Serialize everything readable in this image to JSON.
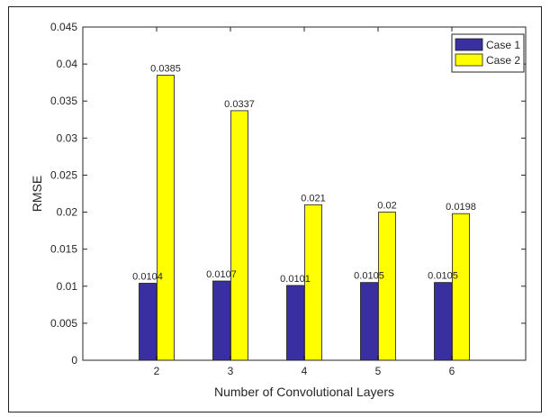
{
  "chart_data": {
    "type": "bar",
    "title": "",
    "xlabel": "Number of Convolutional Layers",
    "ylabel": "RMSE",
    "categories": [
      "2",
      "3",
      "4",
      "5",
      "6"
    ],
    "series": [
      {
        "name": "Case 1",
        "color": "#3a2fa0",
        "values": [
          0.0104,
          0.0107,
          0.0101,
          0.0105,
          0.0105
        ],
        "labels": [
          "0.0104",
          "0.0107",
          "0.0101",
          "0.0105",
          "0.0105"
        ]
      },
      {
        "name": "Case 2",
        "color": "#ffff00",
        "values": [
          0.0385,
          0.0337,
          0.021,
          0.02,
          0.0198
        ],
        "labels": [
          "0.0385",
          "0.0337",
          "0.021",
          "0.02",
          "0.0198"
        ]
      }
    ],
    "ylim": [
      0,
      0.045
    ],
    "yticks": [
      0,
      0.005,
      0.01,
      0.015,
      0.02,
      0.025,
      0.03,
      0.035,
      0.04,
      0.045
    ],
    "ytick_labels": [
      "0",
      "0.005",
      "0.01",
      "0.015",
      "0.02",
      "0.025",
      "0.03",
      "0.035",
      "0.04",
      "0.045"
    ],
    "grid": false,
    "legend_position": "top-right"
  }
}
